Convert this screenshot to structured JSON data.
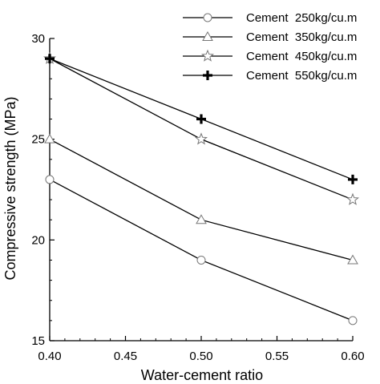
{
  "chart_data": {
    "type": "line",
    "title": "",
    "xlabel": "Water-cement ratio",
    "ylabel": "Compressive strength (MPa)",
    "xlim": [
      0.4,
      0.6
    ],
    "ylim": [
      15,
      30
    ],
    "x_ticks": [
      "0.40",
      "0.45",
      "0.50",
      "0.55",
      "0.60"
    ],
    "y_ticks": [
      "15",
      "20",
      "25",
      "30"
    ],
    "grid": false,
    "legend_position": "top-right",
    "series": [
      {
        "name": "Cement  250kg/cu.m",
        "marker": "circle",
        "x": [
          0.4,
          0.5,
          0.6
        ],
        "y": [
          23,
          19,
          16
        ]
      },
      {
        "name": "Cement  350kg/cu.m",
        "marker": "triangle",
        "x": [
          0.4,
          0.5,
          0.6
        ],
        "y": [
          25,
          21,
          19
        ]
      },
      {
        "name": "Cement  450kg/cu.m",
        "marker": "star",
        "x": [
          0.4,
          0.5,
          0.6
        ],
        "y": [
          29,
          25,
          22
        ]
      },
      {
        "name": "Cement  550kg/cu.m",
        "marker": "plus",
        "x": [
          0.4,
          0.5,
          0.6
        ],
        "y": [
          29,
          26,
          23
        ]
      }
    ]
  }
}
